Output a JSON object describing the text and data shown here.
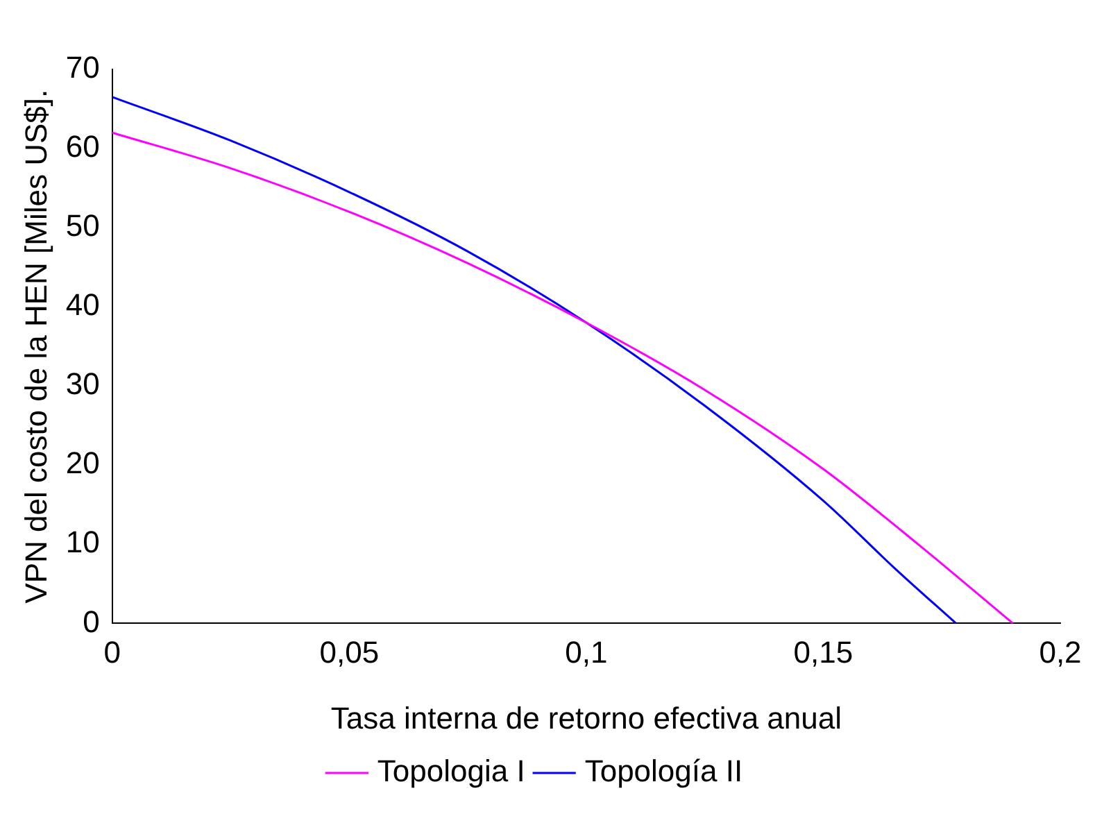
{
  "chart_data": {
    "type": "line",
    "xlabel": "Tasa interna de retorno efectiva anual",
    "ylabel": "VPN del costo de la HEN [Miles US$].",
    "series": [
      {
        "name": "Topologia I",
        "color": "#ff00ff",
        "x": [
          0,
          0.025,
          0.05,
          0.075,
          0.1,
          0.125,
          0.15,
          0.17,
          0.19
        ],
        "values": [
          62,
          57.5,
          52,
          45.5,
          38,
          29.5,
          19.5,
          10,
          0
        ]
      },
      {
        "name": "Topología II",
        "color": "#0000ff",
        "x": [
          0,
          0.025,
          0.05,
          0.075,
          0.1,
          0.125,
          0.15,
          0.165,
          0.178
        ],
        "values": [
          66.5,
          61,
          54.5,
          47,
          38,
          27.5,
          15.5,
          7,
          0
        ]
      }
    ],
    "xlim": [
      0,
      0.2
    ],
    "xticks": [
      0,
      {
        "value": 0.05,
        "label": "0,05"
      },
      {
        "value": 0.1,
        "label": "0,1"
      },
      {
        "value": 0.15,
        "label": "0,15"
      },
      {
        "value": 0.2,
        "label": "0,2"
      }
    ],
    "ylim": [
      0,
      70
    ],
    "yticks": [
      0,
      10,
      20,
      30,
      40,
      50,
      60,
      70
    ],
    "grid": false,
    "legend": "bottom",
    "marker": "none",
    "line_style": "solid"
  }
}
